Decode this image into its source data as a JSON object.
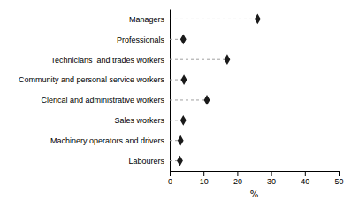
{
  "chart_data": {
    "type": "dot",
    "orientation": "horizontal",
    "categories": [
      "Managers",
      "Professionals",
      "Technicians  and trades workers",
      "Community and personal service workers",
      "Clerical and administrative workers",
      "Sales workers",
      "Machinery operators and drivers",
      "Labourers"
    ],
    "values": [
      26.0,
      4.0,
      17.0,
      4.2,
      11.0,
      4.0,
      3.2,
      3.0
    ],
    "color": "#1a1a1a",
    "marker": "diamond",
    "line_style": "dashed",
    "xlabel": "%",
    "xlim": [
      0,
      50
    ],
    "xticks": [
      0,
      10,
      20,
      30,
      40,
      50
    ],
    "grid": false
  }
}
